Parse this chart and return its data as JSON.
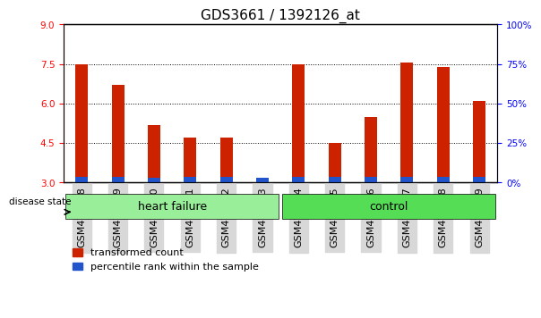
{
  "title": "GDS3661 / 1392126_at",
  "samples": [
    "GSM476048",
    "GSM476049",
    "GSM476050",
    "GSM476051",
    "GSM476052",
    "GSM476053",
    "GSM476054",
    "GSM476055",
    "GSM476056",
    "GSM476057",
    "GSM476058",
    "GSM476059"
  ],
  "red_values": [
    7.5,
    6.7,
    5.2,
    4.7,
    4.7,
    3.1,
    7.5,
    4.5,
    5.5,
    7.55,
    7.4,
    6.1
  ],
  "blue_values": [
    3.22,
    3.22,
    3.18,
    3.22,
    3.22,
    3.18,
    3.22,
    3.22,
    3.22,
    3.22,
    3.22,
    3.22
  ],
  "ylim_left": [
    3,
    9
  ],
  "ylim_right": [
    0,
    100
  ],
  "yticks_left": [
    3,
    4.5,
    6,
    7.5,
    9
  ],
  "yticks_right": [
    0,
    25,
    50,
    75,
    100
  ],
  "bar_width": 0.35,
  "bar_color_red": "#cc2200",
  "bar_color_blue": "#2255cc",
  "groups": [
    {
      "label": "heart failure",
      "start": 0,
      "end": 6,
      "color": "#99ee99"
    },
    {
      "label": "control",
      "start": 6,
      "end": 12,
      "color": "#55dd55"
    }
  ],
  "disease_state_label": "disease state",
  "legend_red": "transformed count",
  "legend_blue": "percentile rank within the sample",
  "title_fontsize": 11,
  "axis_fontsize": 8,
  "tick_fontsize": 7.5,
  "group_label_fontsize": 9,
  "legend_fontsize": 8
}
